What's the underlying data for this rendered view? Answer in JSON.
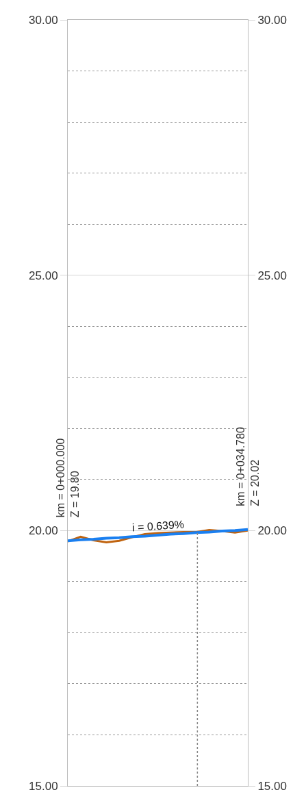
{
  "chart_data": {
    "type": "line",
    "categories": [
      null,
      null,
      null,
      null,
      null,
      null,
      null,
      null,
      null,
      null,
      null,
      null,
      null,
      null,
      null
    ],
    "series": [
      {
        "color": "#c0630e",
        "values": [
          19.79,
          19.88,
          19.81,
          19.77,
          19.8,
          19.87,
          19.93,
          19.95,
          19.96,
          19.97,
          19.97,
          20.01,
          19.99,
          19.96,
          20.0
        ]
      },
      {
        "color": "#1a7ff0",
        "values": [
          19.8,
          19.82,
          19.83,
          19.85,
          19.86,
          19.88,
          19.89,
          19.91,
          19.93,
          19.94,
          19.96,
          19.97,
          19.99,
          20.0,
          20.02
        ]
      }
    ],
    "ylim": [
      15,
      30
    ],
    "yticks": [
      {
        "value": 15,
        "label": "15.00"
      },
      {
        "value": 16,
        "label": null
      },
      {
        "value": 17,
        "label": null
      },
      {
        "value": 18,
        "label": null
      },
      {
        "value": 19,
        "label": null
      },
      {
        "value": 20,
        "label": "20.00"
      },
      {
        "value": 21,
        "label": null
      },
      {
        "value": 22,
        "label": null
      },
      {
        "value": 23,
        "label": null
      },
      {
        "value": 24,
        "label": null
      },
      {
        "value": 25,
        "label": "25.00"
      },
      {
        "value": 26,
        "label": null
      },
      {
        "value": 27,
        "label": null
      },
      {
        "value": 28,
        "label": null
      },
      {
        "value": 29,
        "label": null
      },
      {
        "value": 30,
        "label": "30.00"
      }
    ],
    "y2lim": [
      15,
      30
    ],
    "y2ticks": [
      {
        "value": 15,
        "label": "15.00"
      },
      {
        "value": 20,
        "label": "20.00"
      },
      {
        "value": 25,
        "label": "25.00"
      },
      {
        "value": 30,
        "label": "30.00"
      }
    ],
    "annotations": [
      "km = 0+000.000\nZ = 19.80",
      "i = 0.639%",
      "km = 0+034.780\nZ = 20.02"
    ],
    "grid": "y",
    "tick_labels": "y"
  }
}
